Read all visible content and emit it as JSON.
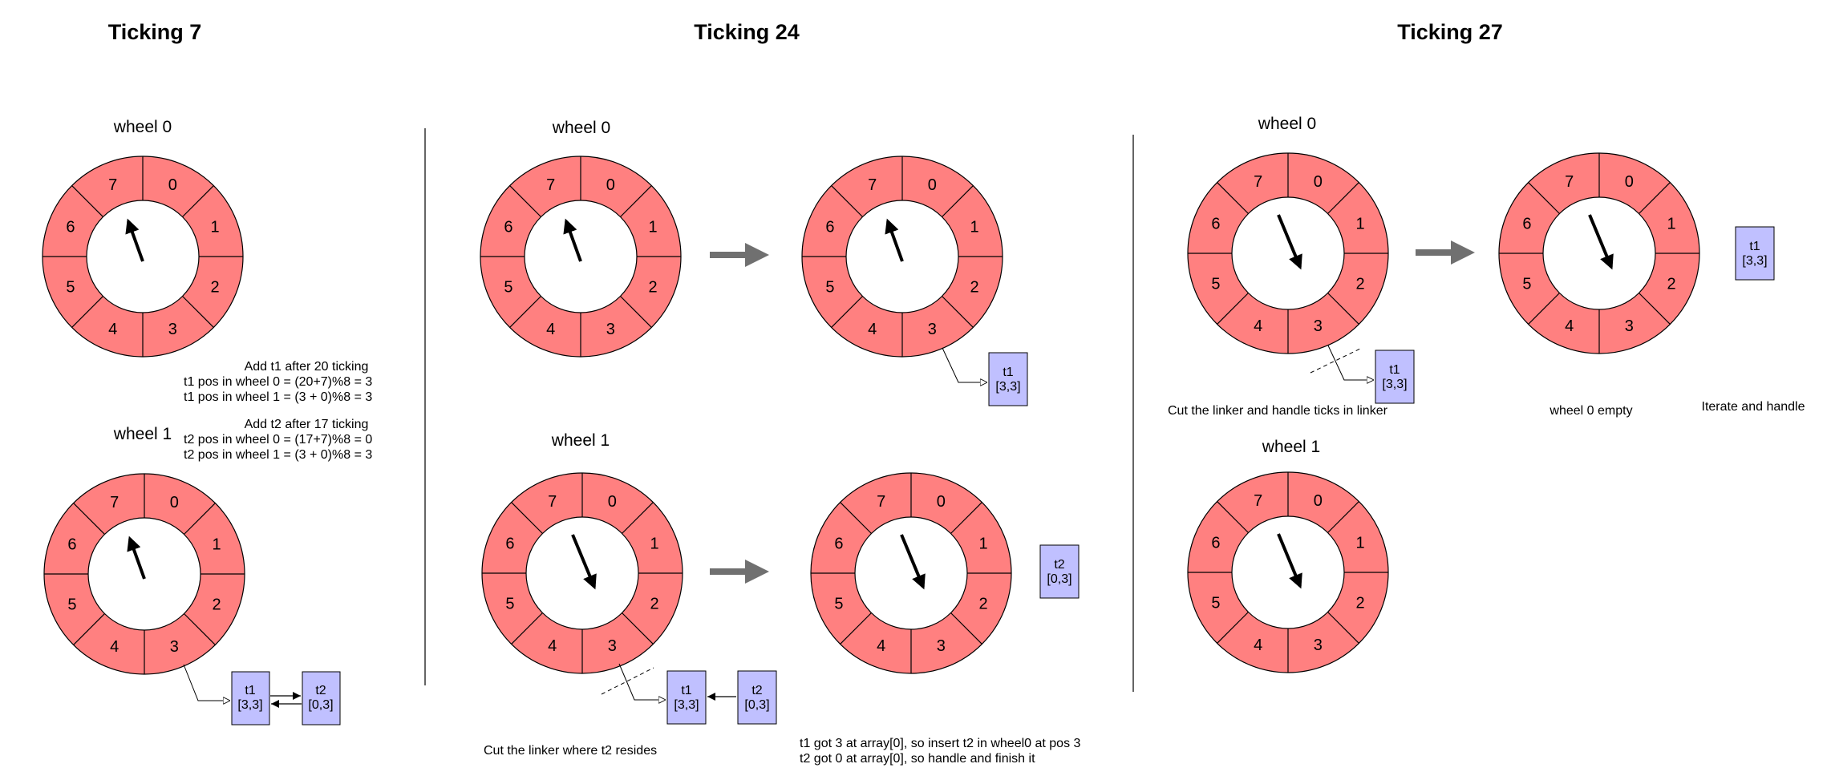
{
  "colors": {
    "wheel_fill": "#ff8080",
    "task_fill": "#c0c0ff",
    "arrow_gray": "#707070",
    "stroke": "#000000"
  },
  "slot_numbers": [
    "0",
    "1",
    "2",
    "3",
    "4",
    "5",
    "6",
    "7"
  ],
  "titles": [
    "Ticking 7",
    "Ticking 24",
    "Ticking 27"
  ],
  "wheel_labels": {
    "wheel0": "wheel 0",
    "wheel1": "wheel 1"
  },
  "tasks": {
    "t1_name": "t1",
    "t1_pos": "[3,3]",
    "t2_name": "t2",
    "t2_pos": "[0,3]"
  },
  "notes": {
    "add_t1_title": "Add t1 after 20 ticking",
    "add_t1_line1": "t1 pos in wheel 0 = (20+7)%8 = 3",
    "add_t1_line2": "t1 pos in wheel 1 = (3 + 0)%8 = 3",
    "add_t2_title": "Add t2 after 17 ticking",
    "add_t2_line1": "t2 pos in wheel 0 = (17+7)%8 = 0",
    "add_t2_line2": "t2 pos in wheel 1 = (3 + 0)%8 = 3",
    "cut_t2": "Cut the linker where t2 resides",
    "t1_got_line1": "t1 got 3 at array[0], so insert t2 in wheel0 at pos 3",
    "t1_got_line2": "t2 got 0 at array[0], so handle and finish it",
    "cut_handle": "Cut the linker and handle ticks in linker",
    "wheel0_empty": "wheel 0 empty",
    "iterate": "Iterate and handle"
  }
}
